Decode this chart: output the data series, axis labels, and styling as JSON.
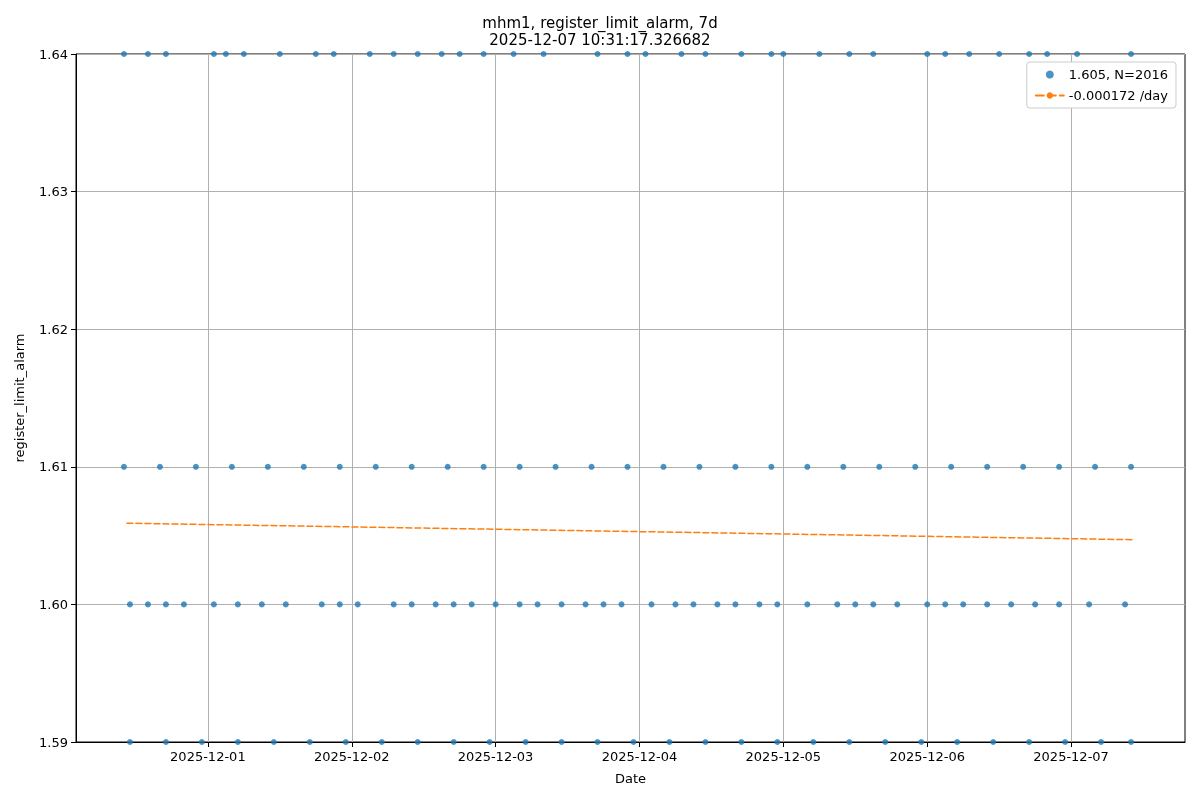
{
  "chart_data": {
    "type": "scatter",
    "title": "mhm1, register_limit_alarm, 7d",
    "subtitle": "2025-12-07 10:31:17.326682",
    "xlabel": "Date",
    "ylabel": "register_limit_alarm",
    "xlim": [
      "2025-11-30T02:00",
      "2025-12-07T19:00"
    ],
    "xticks": [
      "2025-12-01",
      "2025-12-02",
      "2025-12-03",
      "2025-12-04",
      "2025-12-05",
      "2025-12-06",
      "2025-12-07"
    ],
    "ylim": [
      1.59,
      1.64
    ],
    "yticks": [
      1.59,
      {
        "value": 1.6,
        "label": "1.60"
      },
      1.61,
      1.62,
      1.63,
      1.64
    ],
    "grid": true,
    "legend": "top right",
    "series": [
      {
        "name": "1.605, N=2016",
        "marker": "circle",
        "color": "#1f77b4",
        "x": [
          "2025-11-30T10:00",
          "2025-11-30T16:00",
          "2025-11-30T22:00",
          "2025-12-01T04:00",
          "2025-12-01T10:00",
          "2025-12-01T16:00",
          "2025-12-01T22:00",
          "2025-12-02T04:00",
          "2025-12-02T10:00",
          "2025-12-02T16:00",
          "2025-12-02T22:00",
          "2025-12-03T04:00",
          "2025-12-03T10:00",
          "2025-12-03T16:00",
          "2025-12-03T22:00",
          "2025-12-04T04:00",
          "2025-12-04T10:00",
          "2025-12-04T16:00",
          "2025-12-04T22:00",
          "2025-12-05T04:00",
          "2025-12-05T10:00",
          "2025-12-05T16:00",
          "2025-12-05T22:00",
          "2025-12-06T04:00",
          "2025-12-06T10:00",
          "2025-12-06T16:00",
          "2025-12-06T22:00",
          "2025-12-07T04:00",
          "2025-12-07T10:00",
          "2025-11-30T11:00",
          "2025-11-30T17:00",
          "2025-11-30T23:00",
          "2025-12-01T05:00",
          "2025-12-01T11:00",
          "2025-12-01T17:00",
          "2025-12-01T23:00",
          "2025-12-02T05:00",
          "2025-12-02T11:00",
          "2025-12-02T17:00",
          "2025-12-02T23:00",
          "2025-12-03T05:00",
          "2025-12-03T11:00",
          "2025-12-03T17:00",
          "2025-12-03T23:00",
          "2025-12-04T05:00",
          "2025-12-04T11:00",
          "2025-12-04T17:00",
          "2025-12-04T23:00",
          "2025-12-05T05:00",
          "2025-12-05T11:00",
          "2025-12-05T17:00",
          "2025-12-05T23:00",
          "2025-12-06T05:00",
          "2025-12-06T11:00",
          "2025-12-06T17:00",
          "2025-12-06T23:00",
          "2025-12-07T05:00",
          "2025-12-07T10:00",
          "2025-11-30T11:00",
          "2025-11-30T14:00",
          "2025-11-30T17:00",
          "2025-11-30T20:00",
          "2025-12-01T01:00",
          "2025-12-01T05:00",
          "2025-12-01T09:00",
          "2025-12-01T13:00",
          "2025-12-01T19:00",
          "2025-12-01T22:00",
          "2025-12-02T01:00",
          "2025-12-02T07:00",
          "2025-12-02T10:00",
          "2025-12-02T14:00",
          "2025-12-02T17:00",
          "2025-12-02T20:00",
          "2025-12-03T00:00",
          "2025-12-03T04:00",
          "2025-12-03T07:00",
          "2025-12-03T11:00",
          "2025-12-03T15:00",
          "2025-12-03T18:00",
          "2025-12-03T21:00",
          "2025-12-04T02:00",
          "2025-12-04T06:00",
          "2025-12-04T09:00",
          "2025-12-04T13:00",
          "2025-12-04T16:00",
          "2025-12-04T20:00",
          "2025-12-04T23:00",
          "2025-12-05T04:00",
          "2025-12-05T09:00",
          "2025-12-05T12:00",
          "2025-12-05T15:00",
          "2025-12-05T19:00",
          "2025-12-06T00:00",
          "2025-12-06T03:00",
          "2025-12-06T06:00",
          "2025-12-06T10:00",
          "2025-12-06T14:00",
          "2025-12-06T18:00",
          "2025-12-06T22:00",
          "2025-12-07T03:00",
          "2025-12-07T09:00",
          "2025-11-30T10:00",
          "2025-11-30T14:00",
          "2025-11-30T17:00",
          "2025-12-01T01:00",
          "2025-12-01T03:00",
          "2025-12-01T06:00",
          "2025-12-01T12:00",
          "2025-12-01T18:00",
          "2025-12-01T21:00",
          "2025-12-02T03:00",
          "2025-12-02T07:00",
          "2025-12-02T11:00",
          "2025-12-02T15:00",
          "2025-12-02T18:00",
          "2025-12-02T22:00",
          "2025-12-03T03:00",
          "2025-12-03T08:00",
          "2025-12-03T17:00",
          "2025-12-03T22:00",
          "2025-12-04T01:00",
          "2025-12-04T07:00",
          "2025-12-04T11:00",
          "2025-12-04T17:00",
          "2025-12-04T22:00",
          "2025-12-05T00:00",
          "2025-12-05T06:00",
          "2025-12-05T11:00",
          "2025-12-05T15:00",
          "2025-12-06T00:00",
          "2025-12-06T03:00",
          "2025-12-06T07:00",
          "2025-12-06T12:00",
          "2025-12-06T17:00",
          "2025-12-06T20:00",
          "2025-12-07T01:00",
          "2025-12-07T10:00"
        ],
        "values": [
          1.61,
          1.61,
          1.61,
          1.61,
          1.61,
          1.61,
          1.61,
          1.61,
          1.61,
          1.61,
          1.61,
          1.61,
          1.61,
          1.61,
          1.61,
          1.61,
          1.61,
          1.61,
          1.61,
          1.61,
          1.61,
          1.61,
          1.61,
          1.61,
          1.61,
          1.61,
          1.61,
          1.61,
          1.61,
          1.59,
          1.59,
          1.59,
          1.59,
          1.59,
          1.59,
          1.59,
          1.59,
          1.59,
          1.59,
          1.59,
          1.59,
          1.59,
          1.59,
          1.59,
          1.59,
          1.59,
          1.59,
          1.59,
          1.59,
          1.59,
          1.59,
          1.59,
          1.59,
          1.59,
          1.59,
          1.59,
          1.59,
          1.59,
          1.6,
          1.6,
          1.6,
          1.6,
          1.6,
          1.6,
          1.6,
          1.6,
          1.6,
          1.6,
          1.6,
          1.6,
          1.6,
          1.6,
          1.6,
          1.6,
          1.6,
          1.6,
          1.6,
          1.6,
          1.6,
          1.6,
          1.6,
          1.6,
          1.6,
          1.6,
          1.6,
          1.6,
          1.6,
          1.6,
          1.6,
          1.6,
          1.6,
          1.6,
          1.6,
          1.6,
          1.6,
          1.6,
          1.6,
          1.6,
          1.6,
          1.6,
          1.6,
          1.6,
          1.64,
          1.64,
          1.64,
          1.64,
          1.64,
          1.64,
          1.64,
          1.64,
          1.64,
          1.64,
          1.64,
          1.64,
          1.64,
          1.64,
          1.64,
          1.64,
          1.64,
          1.64,
          1.64,
          1.64,
          1.64,
          1.64,
          1.64,
          1.64,
          1.64,
          1.64,
          1.64,
          1.64,
          1.64,
          1.64,
          1.64,
          1.64,
          1.64,
          1.64,
          1.64,
          1.64
        ]
      },
      {
        "name": "-0.000172 /day",
        "type": "line",
        "marker": "none",
        "line_style": "dashed",
        "color": "#ff7f0e",
        "x": [
          "2025-11-30T10:30",
          "2025-12-07T10:30"
        ],
        "values": [
          1.6059,
          1.6047
        ]
      }
    ]
  }
}
